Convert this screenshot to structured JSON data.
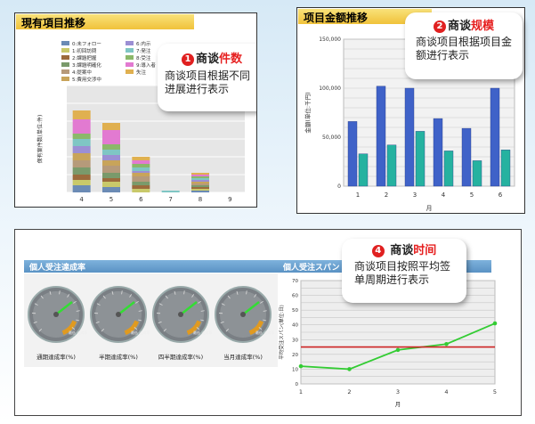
{
  "panel1": {
    "title": "現有項目推移",
    "legend": [
      "0:未フォロー",
      "1:初回訪問",
      "2:課題把握",
      "3:課題明確化",
      "4:提案中",
      "5:費用交渉中",
      "6:内示",
      "7:発注",
      "8:受注",
      "9:導入者",
      "失注"
    ],
    "ylabel": "保有案件数(単位:件)",
    "xlabel": "月",
    "xticks": [
      "4",
      "5",
      "6",
      "7",
      "8",
      "9"
    ],
    "callout": {
      "num": "1",
      "head": "商谈",
      "head_red": "件数",
      "body": "商谈项目根据不同进展进行表示"
    }
  },
  "panel2": {
    "title": "项目金额推移",
    "ylabel": "金額(単位:千円)",
    "xlabel": "月",
    "callout": {
      "num": "2",
      "head": "商谈",
      "head_red": "规模",
      "body": "商谈项目根据项目金额进行表示"
    }
  },
  "panel3": {
    "title_left": "個人受注達成率",
    "title_right": "個人受注スパン",
    "gauges": [
      "通期達成率(%)",
      "半期達成率(%)",
      "四半期達成率(%)",
      "当月達成率(%)"
    ],
    "gauge_small": "最低 达成率",
    "ylabel": "平均受注スパン(単位:日)",
    "xlabel": "月",
    "callout": {
      "num": "4",
      "head": "商谈",
      "head_red": "时间",
      "body": "商谈项目按照平均签单周期进行表示"
    }
  },
  "chart_data": [
    {
      "type": "bar",
      "title": "現有項目推移",
      "xlabel": "月",
      "ylabel": "保有案件数(単位:件)",
      "categories": [
        "4",
        "5",
        "6",
        "7",
        "8",
        "9"
      ],
      "series": [
        {
          "name": "0:未フォロー",
          "values": [
            4,
            3,
            0,
            0,
            1,
            0
          ],
          "color": "#6b8bb5"
        },
        {
          "name": "1:初回訪問",
          "values": [
            3,
            3,
            2,
            0,
            1,
            0
          ],
          "color": "#c9c96a"
        },
        {
          "name": "2:課題把握",
          "values": [
            3,
            2,
            2,
            0,
            1,
            0
          ],
          "color": "#9c6b3c"
        },
        {
          "name": "3:課題明確化",
          "values": [
            4,
            3,
            2,
            0,
            1,
            0
          ],
          "color": "#7a9a6b"
        },
        {
          "name": "4:提案中",
          "values": [
            4,
            4,
            3,
            0,
            1,
            0
          ],
          "color": "#b69a7a"
        },
        {
          "name": "5:費用交渉中",
          "values": [
            4,
            3,
            2,
            0,
            1,
            0
          ],
          "color": "#c8a45a"
        },
        {
          "name": "6:内示",
          "values": [
            4,
            3,
            1,
            0,
            1,
            0
          ],
          "color": "#9b8fd4"
        },
        {
          "name": "7:発注",
          "values": [
            4,
            3,
            2,
            1,
            1,
            0
          ],
          "color": "#7fc6c4"
        },
        {
          "name": "8:受注",
          "values": [
            3,
            3,
            2,
            0,
            1,
            0
          ],
          "color": "#8bb86a"
        },
        {
          "name": "9:導入者",
          "values": [
            8,
            8,
            2,
            0,
            1,
            0
          ],
          "color": "#e27ad1"
        },
        {
          "name": "失注",
          "values": [
            5,
            4,
            2,
            0,
            1,
            0
          ],
          "color": "#e0b050"
        }
      ],
      "ylim": [
        0,
        60
      ],
      "grid": true
    },
    {
      "type": "bar",
      "title": "项目金额推移",
      "xlabel": "月",
      "ylabel": "金額(単位:千円)",
      "categories": [
        "1",
        "2",
        "3",
        "4",
        "5",
        "6"
      ],
      "yticks": [
        "0",
        "50,000",
        "100,000",
        "150,000"
      ],
      "series": [
        {
          "values": [
            66000,
            102000,
            100000,
            69000,
            59000,
            100000
          ],
          "color": "#3f62c8"
        },
        {
          "values": [
            33000,
            42000,
            56000,
            36000,
            26000,
            37000
          ],
          "color": "#25b2a0"
        }
      ],
      "ylim": [
        0,
        150000
      ],
      "grid": true
    },
    {
      "type": "line",
      "title": "個人受注スパン",
      "xlabel": "月",
      "ylabel": "平均受注スパン(単位:日)",
      "x": [
        1,
        2,
        3,
        4,
        5
      ],
      "yticks": [
        "0",
        "10",
        "20",
        "30",
        "40",
        "50",
        "60",
        "70"
      ],
      "series": [
        {
          "values": [
            12,
            10,
            23,
            27,
            41
          ],
          "color": "#33cc33"
        },
        {
          "values": [
            25,
            25,
            25,
            25,
            25
          ],
          "color": "#cc2222"
        }
      ],
      "ylim": [
        0,
        70
      ],
      "grid": true
    }
  ],
  "colors": {
    "title_bar": "#f5d15a",
    "title_bar2": "#aaccee",
    "accent": "#e62020"
  }
}
